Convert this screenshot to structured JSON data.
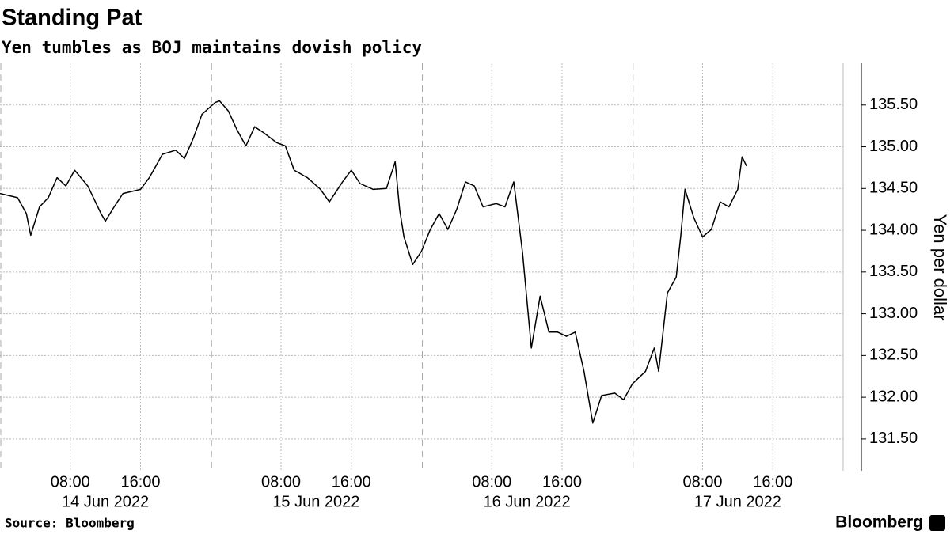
{
  "chart_data": {
    "type": "line",
    "title": "Standing Pat",
    "subtitle": "Yen tumbles as BOJ maintains dovish policy",
    "y_axis_label": "Yen per dollar",
    "source": "Source: Bloomberg",
    "brand": "Bloomberg",
    "color": "#000000",
    "grid": true,
    "x": [
      "2022-06-14T00:00",
      "2022-06-14T02:00",
      "2022-06-14T03:00",
      "2022-06-14T03:30",
      "2022-06-14T04:30",
      "2022-06-14T05:30",
      "2022-06-14T06:30",
      "2022-06-14T07:30",
      "2022-06-14T08:30",
      "2022-06-14T10:00",
      "2022-06-14T11:30",
      "2022-06-14T12:00",
      "2022-06-14T13:00",
      "2022-06-14T14:00",
      "2022-06-14T16:00",
      "2022-06-14T17:00",
      "2022-06-14T18:30",
      "2022-06-14T20:00",
      "2022-06-14T21:00",
      "2022-06-14T22:00",
      "2022-06-14T23:00",
      "2022-06-15T00:30",
      "2022-06-15T01:00",
      "2022-06-15T02:00",
      "2022-06-15T03:00",
      "2022-06-15T04:00",
      "2022-06-15T05:00",
      "2022-06-15T06:00",
      "2022-06-15T07:30",
      "2022-06-15T08:30",
      "2022-06-15T09:30",
      "2022-06-15T11:00",
      "2022-06-15T12:30",
      "2022-06-15T13:30",
      "2022-06-15T15:00",
      "2022-06-15T16:00",
      "2022-06-15T17:00",
      "2022-06-15T18:30",
      "2022-06-15T20:00",
      "2022-06-15T21:00",
      "2022-06-15T21:30",
      "2022-06-15T22:00",
      "2022-06-15T23:00",
      "2022-06-16T00:00",
      "2022-06-16T01:00",
      "2022-06-16T02:00",
      "2022-06-16T03:00",
      "2022-06-16T04:00",
      "2022-06-16T05:00",
      "2022-06-16T06:00",
      "2022-06-16T07:00",
      "2022-06-16T08:30",
      "2022-06-16T09:30",
      "2022-06-16T10:30",
      "2022-06-16T11:30",
      "2022-06-16T12:30",
      "2022-06-16T13:30",
      "2022-06-16T14:30",
      "2022-06-16T15:30",
      "2022-06-16T16:30",
      "2022-06-16T17:30",
      "2022-06-16T18:30",
      "2022-06-16T19:30",
      "2022-06-16T20:30",
      "2022-06-16T22:00",
      "2022-06-16T23:00",
      "2022-06-17T00:00",
      "2022-06-17T01:30",
      "2022-06-17T02:30",
      "2022-06-17T03:00",
      "2022-06-17T04:00",
      "2022-06-17T05:00",
      "2022-06-17T05:30",
      "2022-06-17T06:00",
      "2022-06-17T07:00",
      "2022-06-17T08:00",
      "2022-06-17T09:00",
      "2022-06-17T10:00",
      "2022-06-17T11:00",
      "2022-06-17T12:00",
      "2022-06-17T12:30",
      "2022-06-17T13:00"
    ],
    "values": [
      134.44,
      134.39,
      134.2,
      133.94,
      134.28,
      134.39,
      134.63,
      134.53,
      134.72,
      134.53,
      134.2,
      134.11,
      134.28,
      134.44,
      134.49,
      134.63,
      134.91,
      134.96,
      134.86,
      135.1,
      135.39,
      135.53,
      135.55,
      135.43,
      135.2,
      135.01,
      135.24,
      135.17,
      135.05,
      135.01,
      134.72,
      134.63,
      134.49,
      134.34,
      134.58,
      134.72,
      134.56,
      134.49,
      134.5,
      134.82,
      134.25,
      133.92,
      133.59,
      133.75,
      134.01,
      134.2,
      134.01,
      134.25,
      134.58,
      134.53,
      134.28,
      134.32,
      134.28,
      134.58,
      133.73,
      132.59,
      133.21,
      132.78,
      132.78,
      132.73,
      132.78,
      132.31,
      131.69,
      132.02,
      132.05,
      131.97,
      132.16,
      132.31,
      132.59,
      132.31,
      133.25,
      133.44,
      133.92,
      134.49,
      134.15,
      133.92,
      134.01,
      134.34,
      134.28,
      134.49,
      134.88,
      134.77
    ],
    "xlim": [
      "2022-06-14T00:00",
      "2022-06-18T00:00"
    ],
    "xticks": [
      {
        "value": "2022-06-14T08:00",
        "label": "08:00"
      },
      {
        "value": "2022-06-14T16:00",
        "label": "16:00"
      },
      {
        "value": "2022-06-15T08:00",
        "label": "08:00"
      },
      {
        "value": "2022-06-15T16:00",
        "label": "16:00"
      },
      {
        "value": "2022-06-16T08:00",
        "label": "08:00"
      },
      {
        "value": "2022-06-16T16:00",
        "label": "16:00"
      },
      {
        "value": "2022-06-17T08:00",
        "label": "08:00"
      },
      {
        "value": "2022-06-17T16:00",
        "label": "16:00"
      }
    ],
    "date_labels": [
      {
        "value": "2022-06-14T12:00",
        "label": "14 Jun 2022"
      },
      {
        "value": "2022-06-15T12:00",
        "label": "15 Jun 2022"
      },
      {
        "value": "2022-06-16T12:00",
        "label": "16 Jun 2022"
      },
      {
        "value": "2022-06-17T12:00",
        "label": "17 Jun 2022"
      }
    ],
    "day_ticks": [
      "2022-06-14T00:00",
      "2022-06-15T00:00",
      "2022-06-16T00:00",
      "2022-06-17T00:00"
    ],
    "ylim": [
      131.12,
      136.0
    ],
    "yticks": [
      {
        "value": 131.5,
        "label": "131.50"
      },
      {
        "value": 132,
        "label": "132.00"
      },
      {
        "value": 132.5,
        "label": "132.50"
      },
      {
        "value": 133,
        "label": "133.00"
      },
      {
        "value": 133.5,
        "label": "133.50"
      },
      {
        "value": 134,
        "label": "134.00"
      },
      {
        "value": 134.5,
        "label": "134.50"
      },
      {
        "value": 135,
        "label": "135.00"
      },
      {
        "value": 135.5,
        "label": "135.50"
      }
    ]
  }
}
